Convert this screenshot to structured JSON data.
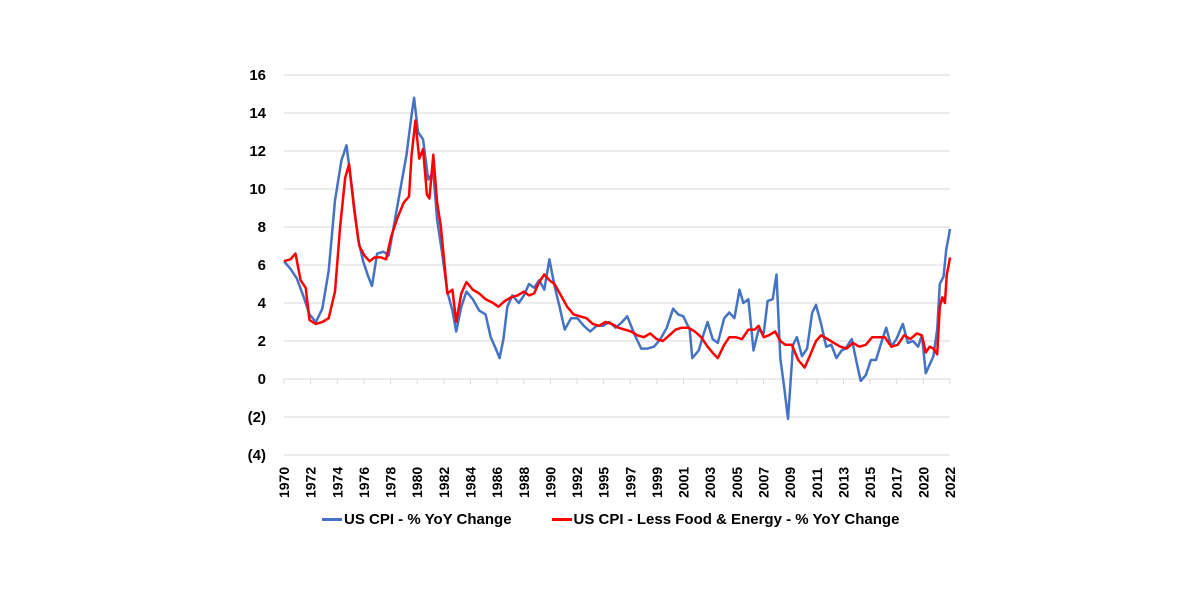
{
  "chart_data": {
    "type": "line",
    "title": "",
    "xlabel": "",
    "ylabel": "",
    "xlim": [
      1970,
      2022.2
    ],
    "ylim": [
      -4,
      16
    ],
    "grid": true,
    "legend_position": "bottom",
    "y_ticks": [
      {
        "value": 16,
        "label": "16"
      },
      {
        "value": 14,
        "label": "14"
      },
      {
        "value": 12,
        "label": "12"
      },
      {
        "value": 10,
        "label": "10"
      },
      {
        "value": 8,
        "label": "8"
      },
      {
        "value": 6,
        "label": "6"
      },
      {
        "value": 4,
        "label": "4"
      },
      {
        "value": 2,
        "label": "2"
      },
      {
        "value": 0,
        "label": "0"
      },
      {
        "value": -2,
        "label": "(2)"
      },
      {
        "value": -4,
        "label": "(4)"
      }
    ],
    "x_ticks": [
      "1970",
      "1972",
      "1974",
      "1976",
      "1978",
      "1980",
      "1982",
      "1984",
      "1986",
      "1988",
      "1990",
      "1992",
      "1995",
      "1997",
      "1999",
      "2001",
      "2003",
      "2005",
      "2007",
      "2009",
      "2011",
      "2013",
      "2015",
      "2017",
      "2020",
      "2022"
    ],
    "series": [
      {
        "name": "US CPI - % YoY Change",
        "color": "#4472C4",
        "points": [
          [
            1970.0,
            6.2
          ],
          [
            1970.5,
            5.8
          ],
          [
            1971.0,
            5.3
          ],
          [
            1971.5,
            4.4
          ],
          [
            1972.0,
            3.4
          ],
          [
            1972.5,
            3.0
          ],
          [
            1973.0,
            3.7
          ],
          [
            1973.5,
            5.7
          ],
          [
            1974.0,
            9.4
          ],
          [
            1974.5,
            11.5
          ],
          [
            1974.9,
            12.3
          ],
          [
            1975.3,
            10.2
          ],
          [
            1975.8,
            7.4
          ],
          [
            1976.2,
            6.2
          ],
          [
            1976.6,
            5.4
          ],
          [
            1976.9,
            4.9
          ],
          [
            1977.3,
            6.6
          ],
          [
            1977.8,
            6.7
          ],
          [
            1978.2,
            6.5
          ],
          [
            1978.7,
            8.4
          ],
          [
            1979.2,
            10.3
          ],
          [
            1979.6,
            11.8
          ],
          [
            1980.0,
            13.9
          ],
          [
            1980.2,
            14.8
          ],
          [
            1980.5,
            13.0
          ],
          [
            1980.9,
            12.6
          ],
          [
            1981.3,
            10.5
          ],
          [
            1981.7,
            10.9
          ],
          [
            1982.0,
            8.4
          ],
          [
            1982.4,
            6.6
          ],
          [
            1982.8,
            4.6
          ],
          [
            1983.2,
            3.6
          ],
          [
            1983.5,
            2.5
          ],
          [
            1983.9,
            3.8
          ],
          [
            1984.3,
            4.6
          ],
          [
            1984.8,
            4.2
          ],
          [
            1985.3,
            3.6
          ],
          [
            1985.8,
            3.4
          ],
          [
            1986.2,
            2.2
          ],
          [
            1986.6,
            1.6
          ],
          [
            1986.9,
            1.1
          ],
          [
            1987.2,
            2.1
          ],
          [
            1987.5,
            3.8
          ],
          [
            1987.9,
            4.4
          ],
          [
            1988.4,
            4.0
          ],
          [
            1988.8,
            4.4
          ],
          [
            1989.2,
            5.0
          ],
          [
            1989.6,
            4.8
          ],
          [
            1990.0,
            5.2
          ],
          [
            1990.4,
            4.7
          ],
          [
            1990.8,
            6.3
          ],
          [
            1991.2,
            4.9
          ],
          [
            1991.6,
            3.8
          ],
          [
            1992.0,
            2.6
          ],
          [
            1992.5,
            3.2
          ],
          [
            1993.0,
            3.2
          ],
          [
            1993.5,
            2.8
          ],
          [
            1994.0,
            2.5
          ],
          [
            1994.5,
            2.8
          ],
          [
            1995.0,
            2.8
          ],
          [
            1995.5,
            3.0
          ],
          [
            1996.0,
            2.7
          ],
          [
            1996.5,
            3.0
          ],
          [
            1996.9,
            3.3
          ],
          [
            1997.5,
            2.3
          ],
          [
            1998.0,
            1.6
          ],
          [
            1998.5,
            1.6
          ],
          [
            1999.0,
            1.7
          ],
          [
            1999.5,
            2.1
          ],
          [
            2000.0,
            2.7
          ],
          [
            2000.5,
            3.7
          ],
          [
            2000.9,
            3.4
          ],
          [
            2001.3,
            3.3
          ],
          [
            2001.8,
            2.6
          ],
          [
            2002.0,
            1.1
          ],
          [
            2002.5,
            1.5
          ],
          [
            2002.9,
            2.4
          ],
          [
            2003.2,
            3.0
          ],
          [
            2003.6,
            2.1
          ],
          [
            2004.0,
            1.9
          ],
          [
            2004.5,
            3.2
          ],
          [
            2004.9,
            3.5
          ],
          [
            2005.3,
            3.2
          ],
          [
            2005.7,
            4.7
          ],
          [
            2006.0,
            4.0
          ],
          [
            2006.4,
            4.2
          ],
          [
            2006.8,
            1.5
          ],
          [
            2007.2,
            2.6
          ],
          [
            2007.6,
            2.4
          ],
          [
            2007.9,
            4.1
          ],
          [
            2008.3,
            4.2
          ],
          [
            2008.6,
            5.5
          ],
          [
            2008.9,
            1.1
          ],
          [
            2009.2,
            -0.4
          ],
          [
            2009.5,
            -2.1
          ],
          [
            2009.9,
            1.8
          ],
          [
            2010.2,
            2.2
          ],
          [
            2010.6,
            1.2
          ],
          [
            2011.0,
            1.6
          ],
          [
            2011.4,
            3.5
          ],
          [
            2011.7,
            3.9
          ],
          [
            2012.1,
            2.9
          ],
          [
            2012.5,
            1.7
          ],
          [
            2012.9,
            1.8
          ],
          [
            2013.3,
            1.1
          ],
          [
            2013.7,
            1.5
          ],
          [
            2014.0,
            1.6
          ],
          [
            2014.5,
            2.1
          ],
          [
            2014.9,
            0.8
          ],
          [
            2015.2,
            -0.1
          ],
          [
            2015.6,
            0.2
          ],
          [
            2016.0,
            1.0
          ],
          [
            2016.4,
            1.0
          ],
          [
            2016.9,
            2.1
          ],
          [
            2017.2,
            2.7
          ],
          [
            2017.6,
            1.7
          ],
          [
            2018.0,
            2.1
          ],
          [
            2018.5,
            2.9
          ],
          [
            2018.9,
            1.9
          ],
          [
            2019.3,
            2.0
          ],
          [
            2019.7,
            1.7
          ],
          [
            2020.0,
            2.3
          ],
          [
            2020.3,
            0.3
          ],
          [
            2020.5,
            0.6
          ],
          [
            2020.9,
            1.2
          ],
          [
            2021.2,
            2.6
          ],
          [
            2021.4,
            5.0
          ],
          [
            2021.7,
            5.4
          ],
          [
            2021.9,
            6.8
          ],
          [
            2022.1,
            7.5
          ],
          [
            2022.2,
            7.9
          ]
        ]
      },
      {
        "name": "US CPI - Less Food & Energy - % YoY Change",
        "color": "#FF0000",
        "points": [
          [
            1970.0,
            6.2
          ],
          [
            1970.5,
            6.3
          ],
          [
            1970.9,
            6.6
          ],
          [
            1971.3,
            5.2
          ],
          [
            1971.7,
            4.8
          ],
          [
            1972.0,
            3.1
          ],
          [
            1972.5,
            2.9
          ],
          [
            1973.0,
            3.0
          ],
          [
            1973.5,
            3.2
          ],
          [
            1974.0,
            4.6
          ],
          [
            1974.4,
            8.0
          ],
          [
            1974.8,
            10.6
          ],
          [
            1975.1,
            11.3
          ],
          [
            1975.5,
            8.9
          ],
          [
            1975.9,
            7.0
          ],
          [
            1976.3,
            6.5
          ],
          [
            1976.7,
            6.2
          ],
          [
            1977.1,
            6.4
          ],
          [
            1977.6,
            6.4
          ],
          [
            1978.0,
            6.3
          ],
          [
            1978.4,
            7.5
          ],
          [
            1978.9,
            8.5
          ],
          [
            1979.4,
            9.3
          ],
          [
            1979.8,
            9.6
          ],
          [
            1980.0,
            11.8
          ],
          [
            1980.3,
            13.6
          ],
          [
            1980.6,
            11.6
          ],
          [
            1980.9,
            12.1
          ],
          [
            1981.2,
            9.7
          ],
          [
            1981.4,
            9.5
          ],
          [
            1981.7,
            11.8
          ],
          [
            1982.0,
            9.3
          ],
          [
            1982.3,
            8.0
          ],
          [
            1982.8,
            4.5
          ],
          [
            1983.2,
            4.7
          ],
          [
            1983.5,
            3.0
          ],
          [
            1983.9,
            4.5
          ],
          [
            1984.3,
            5.1
          ],
          [
            1984.8,
            4.7
          ],
          [
            1985.3,
            4.5
          ],
          [
            1985.8,
            4.2
          ],
          [
            1986.4,
            4.0
          ],
          [
            1986.8,
            3.8
          ],
          [
            1987.3,
            4.1
          ],
          [
            1987.8,
            4.3
          ],
          [
            1988.3,
            4.4
          ],
          [
            1988.8,
            4.6
          ],
          [
            1989.2,
            4.4
          ],
          [
            1989.6,
            4.5
          ],
          [
            1990.0,
            5.1
          ],
          [
            1990.4,
            5.5
          ],
          [
            1990.8,
            5.2
          ],
          [
            1991.2,
            5.0
          ],
          [
            1991.7,
            4.4
          ],
          [
            1992.2,
            3.8
          ],
          [
            1992.7,
            3.4
          ],
          [
            1993.2,
            3.3
          ],
          [
            1993.7,
            3.2
          ],
          [
            1994.2,
            2.9
          ],
          [
            1994.7,
            2.8
          ],
          [
            1995.2,
            3.0
          ],
          [
            1995.7,
            2.9
          ],
          [
            1996.2,
            2.7
          ],
          [
            1996.7,
            2.6
          ],
          [
            1997.2,
            2.5
          ],
          [
            1997.7,
            2.3
          ],
          [
            1998.2,
            2.2
          ],
          [
            1998.7,
            2.4
          ],
          [
            1999.2,
            2.1
          ],
          [
            1999.7,
            2.0
          ],
          [
            2000.2,
            2.3
          ],
          [
            2000.7,
            2.6
          ],
          [
            2001.2,
            2.7
          ],
          [
            2001.7,
            2.7
          ],
          [
            2002.2,
            2.5
          ],
          [
            2002.7,
            2.2
          ],
          [
            2003.2,
            1.7
          ],
          [
            2003.7,
            1.3
          ],
          [
            2004.0,
            1.1
          ],
          [
            2004.5,
            1.8
          ],
          [
            2004.9,
            2.2
          ],
          [
            2005.4,
            2.2
          ],
          [
            2005.9,
            2.1
          ],
          [
            2006.4,
            2.6
          ],
          [
            2006.9,
            2.6
          ],
          [
            2007.2,
            2.8
          ],
          [
            2007.6,
            2.2
          ],
          [
            2008.0,
            2.3
          ],
          [
            2008.5,
            2.5
          ],
          [
            2008.9,
            2.0
          ],
          [
            2009.3,
            1.8
          ],
          [
            2009.8,
            1.8
          ],
          [
            2010.3,
            1.0
          ],
          [
            2010.8,
            0.6
          ],
          [
            2011.2,
            1.2
          ],
          [
            2011.7,
            2.0
          ],
          [
            2012.1,
            2.3
          ],
          [
            2012.6,
            2.1
          ],
          [
            2013.1,
            1.9
          ],
          [
            2013.6,
            1.7
          ],
          [
            2014.1,
            1.6
          ],
          [
            2014.6,
            1.9
          ],
          [
            2015.1,
            1.7
          ],
          [
            2015.6,
            1.8
          ],
          [
            2016.1,
            2.2
          ],
          [
            2016.6,
            2.2
          ],
          [
            2017.1,
            2.2
          ],
          [
            2017.6,
            1.7
          ],
          [
            2018.1,
            1.8
          ],
          [
            2018.6,
            2.3
          ],
          [
            2019.1,
            2.1
          ],
          [
            2019.6,
            2.4
          ],
          [
            2020.0,
            2.3
          ],
          [
            2020.3,
            1.4
          ],
          [
            2020.6,
            1.7
          ],
          [
            2020.9,
            1.6
          ],
          [
            2021.2,
            1.3
          ],
          [
            2021.4,
            3.8
          ],
          [
            2021.6,
            4.3
          ],
          [
            2021.8,
            4.0
          ],
          [
            2021.95,
            5.5
          ],
          [
            2022.1,
            6.0
          ],
          [
            2022.2,
            6.4
          ]
        ]
      }
    ]
  },
  "legend": {
    "items": [
      {
        "label": "US CPI - % YoY Change",
        "color": "#4472C4"
      },
      {
        "label": "US CPI - Less Food & Energy - % YoY Change",
        "color": "#FF0000"
      }
    ]
  }
}
